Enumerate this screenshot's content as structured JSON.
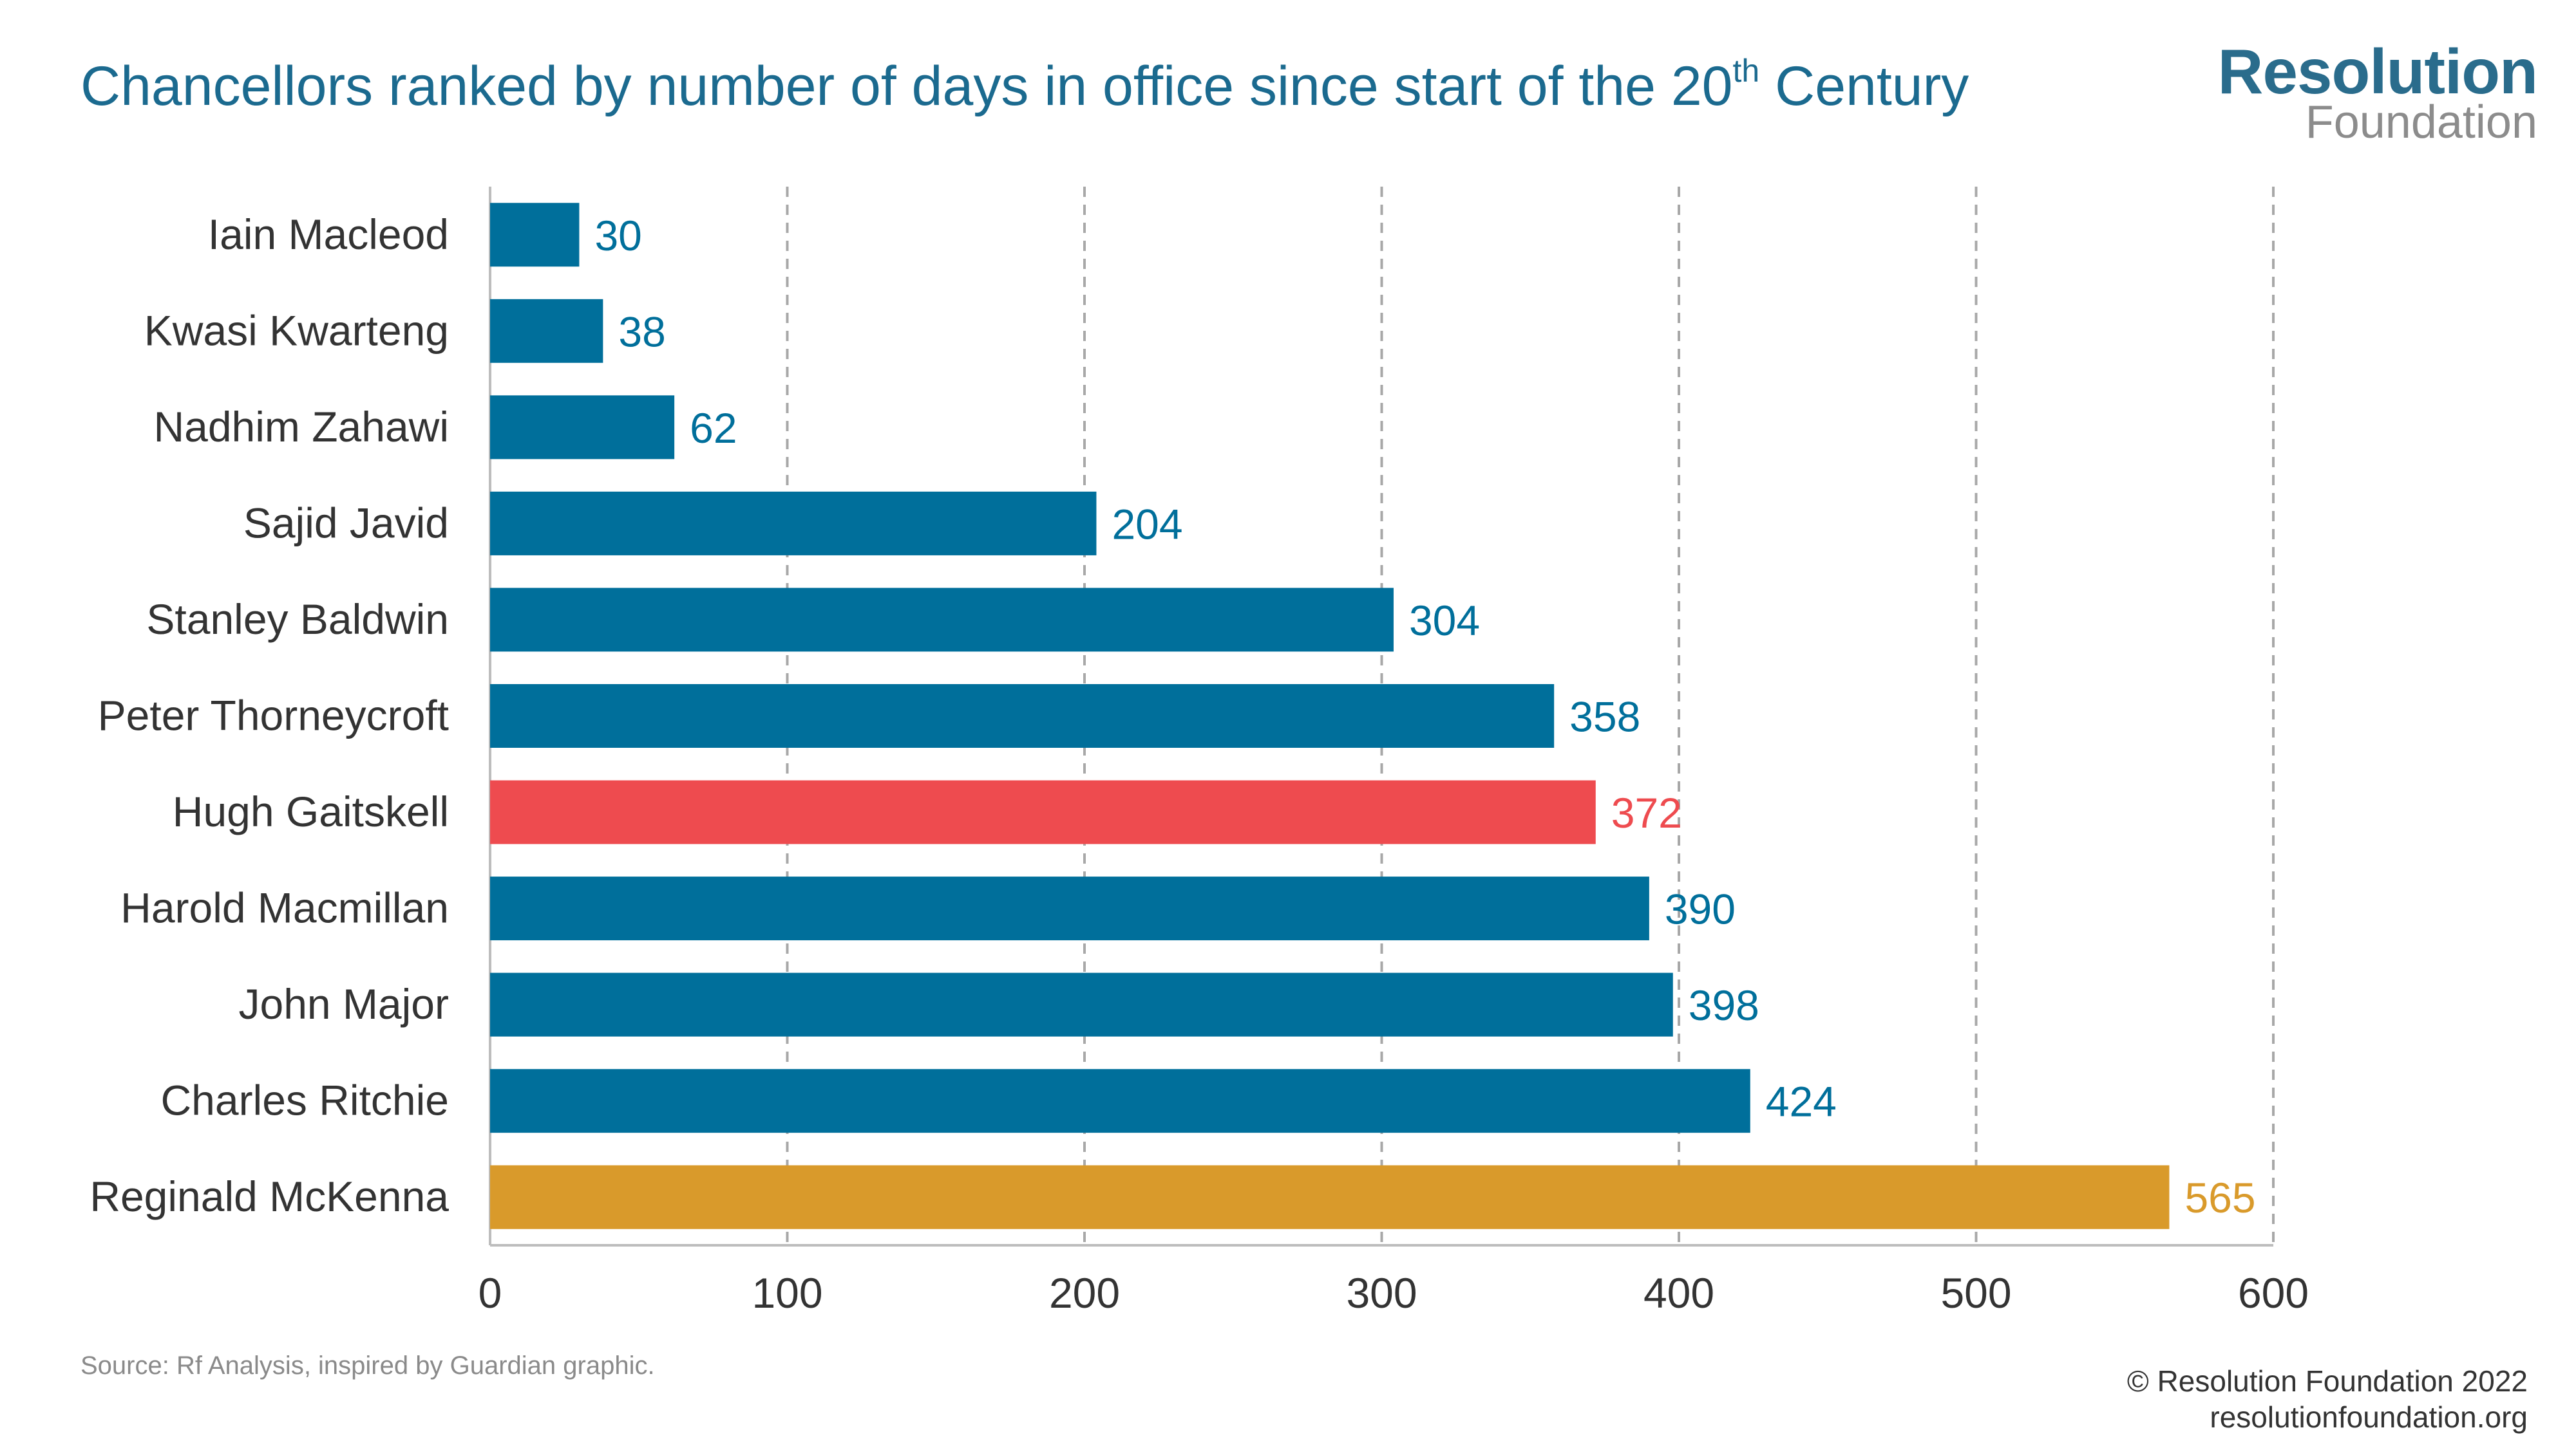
{
  "title": {
    "main": "Chancellors ranked by number of days in office since start of the 20",
    "superscript": "th",
    "suffix": " Century"
  },
  "logo": {
    "line1": "Resolution",
    "line2": "Foundation"
  },
  "source": "Source: Rf Analysis, inspired by Guardian graphic.",
  "footer": {
    "copyright": "© Resolution Foundation 2022",
    "url": "resolutionfoundation.org"
  },
  "colors": {
    "default_bar": "#006f9b",
    "highlight_red": "#ee4b4f",
    "highlight_gold": "#d99a2b",
    "text": "#333333",
    "grid": "#a8a8a8"
  },
  "chart_data": {
    "type": "bar",
    "orientation": "horizontal",
    "title": "Chancellors ranked by number of days in office since start of the 20th Century",
    "xlabel": "",
    "ylabel": "",
    "xlim": [
      0,
      600
    ],
    "x_ticks": [
      0,
      100,
      200,
      300,
      400,
      500,
      600
    ],
    "grid": "vertical dashed",
    "categories": [
      "Iain Macleod",
      "Kwasi Kwarteng",
      "Nadhim Zahawi",
      "Sajid Javid",
      "Stanley Baldwin",
      "Peter Thorneycroft",
      "Hugh Gaitskell",
      "Harold Macmillan",
      "John Major",
      "Charles Ritchie",
      "Reginald McKenna"
    ],
    "values": [
      30,
      38,
      62,
      204,
      304,
      358,
      372,
      390,
      398,
      424,
      565
    ],
    "bar_colors": [
      "#006f9b",
      "#006f9b",
      "#006f9b",
      "#006f9b",
      "#006f9b",
      "#006f9b",
      "#ee4b4f",
      "#006f9b",
      "#006f9b",
      "#006f9b",
      "#d99a2b"
    ]
  }
}
